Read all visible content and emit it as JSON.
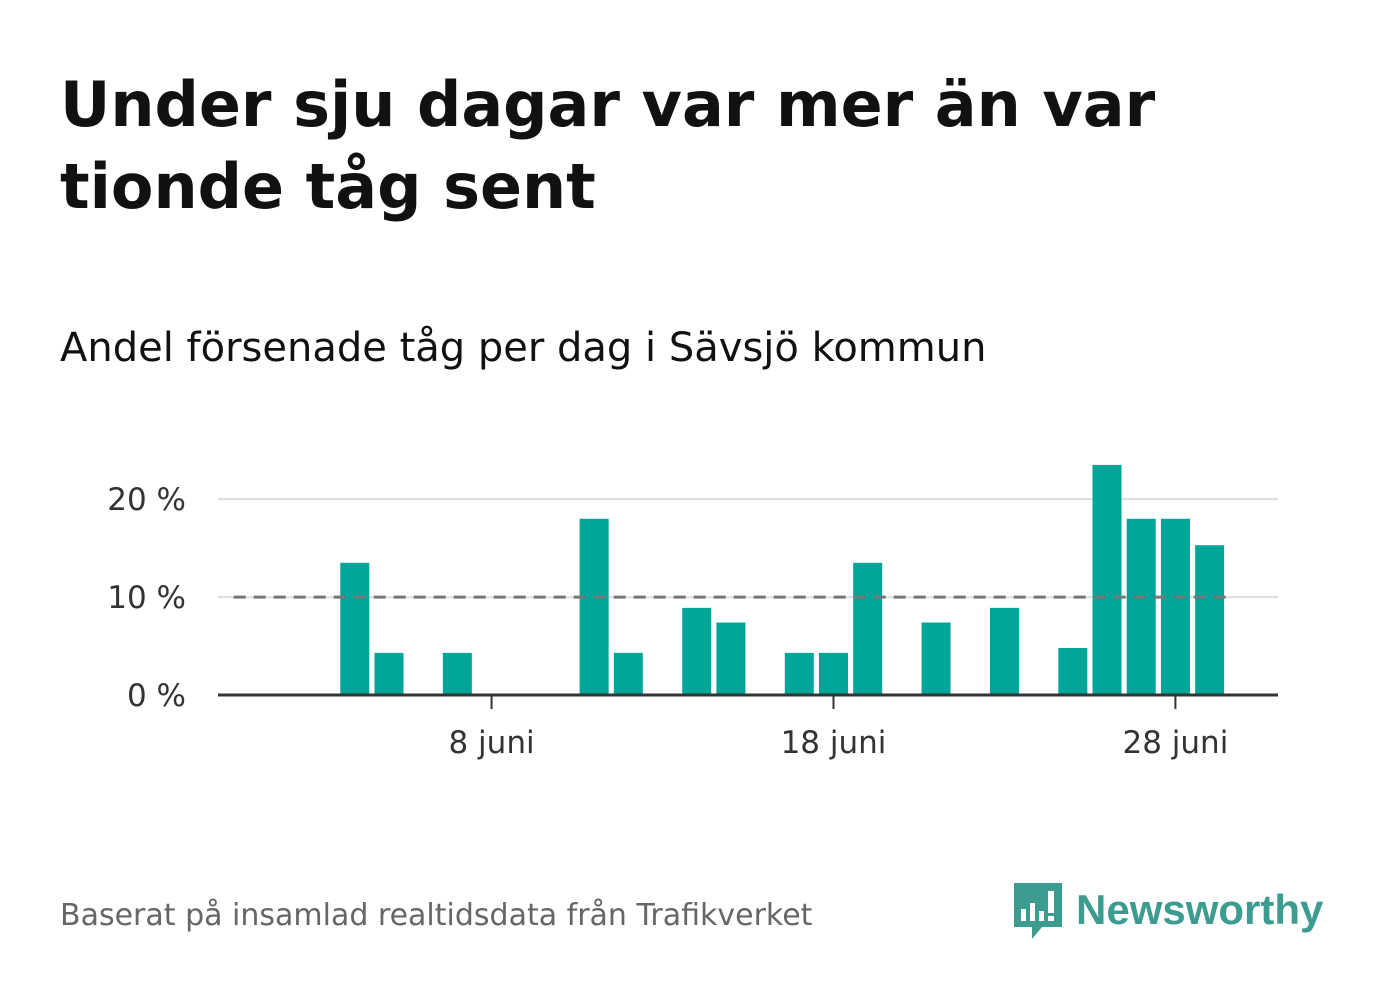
{
  "header": {
    "title": "Under sju dagar var mer än var tionde tåg sent",
    "subtitle": "Andel försenade tåg per dag i Sävsjö kommun"
  },
  "footer": {
    "source": "Baserat på insamlad realtidsdata från Trafikverket",
    "brand": "Newsworthy"
  },
  "colors": {
    "bar": "#00a59a",
    "reference_line": "#777777",
    "grid": "#dddddd",
    "axis": "#333333",
    "brand": "#3c9c8f"
  },
  "chart_data": {
    "type": "bar",
    "x_unit": "day of June",
    "x": [
      1,
      2,
      3,
      4,
      5,
      6,
      7,
      8,
      9,
      10,
      11,
      12,
      13,
      14,
      15,
      16,
      17,
      18,
      19,
      20,
      21,
      22,
      23,
      24,
      25,
      26,
      27,
      28,
      29
    ],
    "values": [
      0,
      0,
      0,
      13.5,
      4.3,
      0,
      4.3,
      0,
      0,
      0,
      18,
      4.3,
      0,
      8.9,
      7.4,
      0,
      4.3,
      4.3,
      13.5,
      0,
      7.4,
      0,
      8.9,
      0,
      4.8,
      23.5,
      18,
      18,
      15.3
    ],
    "reference_line": 10,
    "y_ticks": [
      0,
      10,
      20
    ],
    "y_tick_labels": [
      "0 %",
      "10 %",
      "20 %"
    ],
    "x_ticks": [
      8,
      18,
      28
    ],
    "x_tick_labels": [
      "8 juni",
      "18 juni",
      "28 juni"
    ],
    "ylim": [
      0,
      24
    ],
    "xlim": [
      0,
      31
    ],
    "grid": true,
    "legend": "none"
  }
}
